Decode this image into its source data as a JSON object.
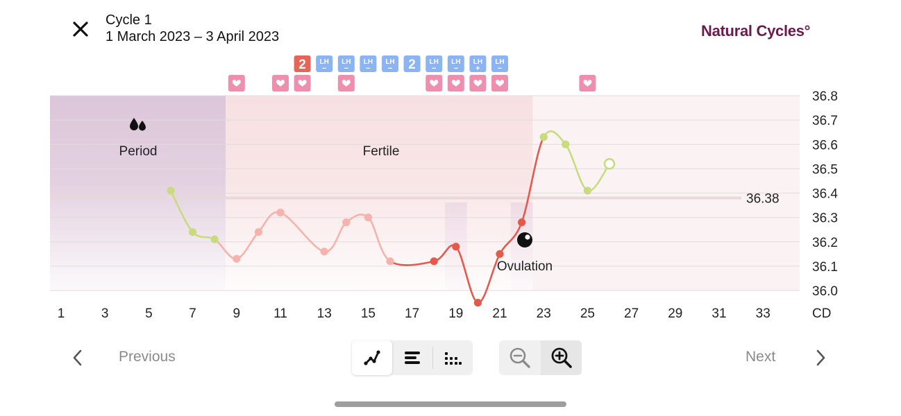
{
  "header": {
    "cycle_title": "Cycle 1",
    "cycle_dates": "1 March 2023 – 3 April 2023",
    "brand": "Natural Cycles°",
    "close_icon": "close-icon"
  },
  "colors": {
    "period_band": "#dcc6d9",
    "fertile_band": "#f7e0e1",
    "ovulation_band": "#e4c8d6",
    "temp_green": "#c8dc7e",
    "temp_pink": "#f5b3ab",
    "temp_red": "#e35a4d",
    "marker_heart": "#ee8fae",
    "marker_lh": "#8cb3f2",
    "marker_count": "#e4665a",
    "brand": "#6b1a4f"
  },
  "labels": {
    "period": "Period",
    "fertile": "Fertile",
    "ovulation": "Ovulation",
    "cover_line_value": "36.38"
  },
  "nav": {
    "previous": "Previous",
    "next": "Next"
  },
  "chart_data": {
    "type": "line",
    "x_axis_unit": "CD",
    "xlim": [
      1,
      34
    ],
    "ylim": [
      36.0,
      36.8
    ],
    "x_ticks": [
      1,
      3,
      5,
      7,
      9,
      11,
      13,
      15,
      17,
      19,
      21,
      23,
      25,
      27,
      29,
      31,
      33
    ],
    "y_ticks": [
      "36.8",
      "36.7",
      "36.6",
      "36.5",
      "36.4",
      "36.3",
      "36.2",
      "36.1",
      "36.0"
    ],
    "cover_line": 36.38,
    "grid": true,
    "regions": [
      {
        "name": "Period",
        "start_day": 1,
        "end_day": 8.5
      },
      {
        "name": "Fertile",
        "start_day": 8.5,
        "end_day": 22.5
      },
      {
        "name": "Ovulation",
        "days": [
          19,
          22
        ]
      }
    ],
    "series": [
      {
        "points": [
          {
            "day": 6,
            "temp": 36.41,
            "phase": "green"
          },
          {
            "day": 7,
            "temp": 36.24,
            "phase": "green"
          },
          {
            "day": 8,
            "temp": 36.21,
            "phase": "green"
          },
          {
            "day": 9,
            "temp": 36.13,
            "phase": "pink"
          },
          {
            "day": 10,
            "temp": 36.24,
            "phase": "pink"
          },
          {
            "day": 11,
            "temp": 36.32,
            "phase": "pink"
          },
          {
            "day": 13,
            "temp": 36.16,
            "phase": "pink"
          },
          {
            "day": 14,
            "temp": 36.28,
            "phase": "pink"
          },
          {
            "day": 15,
            "temp": 36.3,
            "phase": "pink"
          },
          {
            "day": 16,
            "temp": 36.12,
            "phase": "pink"
          },
          {
            "day": 18,
            "temp": 36.12,
            "phase": "red"
          },
          {
            "day": 19,
            "temp": 36.18,
            "phase": "red"
          },
          {
            "day": 20,
            "temp": 35.95,
            "phase": "red"
          },
          {
            "day": 21,
            "temp": 36.15,
            "phase": "red"
          },
          {
            "day": 22,
            "temp": 36.28,
            "phase": "red"
          },
          {
            "day": 23,
            "temp": 36.63,
            "phase": "green"
          },
          {
            "day": 24,
            "temp": 36.6,
            "phase": "green"
          },
          {
            "day": 25,
            "temp": 36.41,
            "phase": "green"
          },
          {
            "day": 26,
            "temp": 36.52,
            "phase": "green",
            "open": true
          }
        ]
      }
    ],
    "markers": {
      "counts": [
        {
          "day": 12,
          "value": "2"
        },
        {
          "day": 17,
          "value": "2"
        }
      ],
      "lh_tests": [
        {
          "day": 13,
          "result": "LH",
          "sign": "−"
        },
        {
          "day": 14,
          "result": "LH",
          "sign": "−"
        },
        {
          "day": 15,
          "result": "LH",
          "sign": "−"
        },
        {
          "day": 16,
          "result": "LH",
          "sign": "−"
        },
        {
          "day": 18,
          "result": "LH",
          "sign": "−"
        },
        {
          "day": 19,
          "result": "LH",
          "sign": "−"
        },
        {
          "day": 20,
          "result": "LH",
          "sign": "+"
        },
        {
          "day": 21,
          "result": "LH",
          "sign": "−"
        }
      ],
      "hearts": [
        9,
        11,
        12,
        14,
        18,
        19,
        20,
        21,
        25
      ]
    },
    "icons": {
      "period": "blood-drops-icon",
      "ovulation": "ovulation-egg-icon"
    }
  }
}
